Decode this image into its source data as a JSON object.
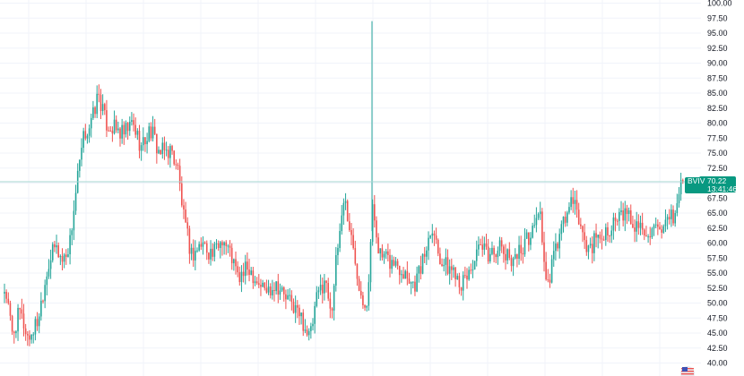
{
  "chart_data": {
    "type": "candlestick",
    "symbol": "BVIV",
    "last_price": "70.22",
    "countdown": "13:41:46",
    "ylim": [
      40,
      100
    ],
    "y_ticks": [
      "100.00",
      "97.50",
      "95.00",
      "92.50",
      "90.00",
      "87.50",
      "85.00",
      "82.50",
      "80.00",
      "77.50",
      "75.00",
      "72.50",
      "70.00",
      "67.50",
      "65.00",
      "62.50",
      "60.00",
      "57.50",
      "55.00",
      "52.50",
      "50.00",
      "47.50",
      "45.00",
      "42.50",
      "40.00"
    ],
    "grid": true,
    "colors": {
      "up": "#26a69a",
      "down": "#ef5350",
      "grid": "#f0f3fa",
      "price_line": "#a5d6d2",
      "badge": "#089981"
    },
    "anchors": [
      [
        0,
        50.0
      ],
      [
        8,
        52.5
      ],
      [
        16,
        44.5
      ],
      [
        24,
        48.5
      ],
      [
        34,
        44.0
      ],
      [
        44,
        47.0
      ],
      [
        56,
        56.5
      ],
      [
        64,
        59.5
      ],
      [
        72,
        57.0
      ],
      [
        80,
        60.0
      ],
      [
        88,
        70.0
      ],
      [
        96,
        78.0
      ],
      [
        104,
        80.0
      ],
      [
        112,
        85.0
      ],
      [
        120,
        80.0
      ],
      [
        130,
        79.0
      ],
      [
        140,
        78.0
      ],
      [
        150,
        80.0
      ],
      [
        160,
        76.0
      ],
      [
        170,
        79.0
      ],
      [
        180,
        75.0
      ],
      [
        192,
        75.5
      ],
      [
        200,
        73.0
      ],
      [
        208,
        63.0
      ],
      [
        216,
        58.0
      ],
      [
        228,
        60.0
      ],
      [
        240,
        58.0
      ],
      [
        250,
        61.0
      ],
      [
        260,
        58.0
      ],
      [
        268,
        54.0
      ],
      [
        280,
        56.0
      ],
      [
        290,
        53.5
      ],
      [
        300,
        52.0
      ],
      [
        310,
        53.5
      ],
      [
        320,
        51.0
      ],
      [
        330,
        49.5
      ],
      [
        340,
        47.0
      ],
      [
        348,
        44.0
      ],
      [
        356,
        51.0
      ],
      [
        364,
        54.0
      ],
      [
        372,
        49.0
      ],
      [
        378,
        58.0
      ],
      [
        386,
        68.0
      ],
      [
        396,
        59.0
      ],
      [
        406,
        51.0
      ],
      [
        412,
        50.5
      ],
      [
        418,
        66.0
      ],
      [
        426,
        58.0
      ],
      [
        434,
        57.0
      ],
      [
        444,
        56.5
      ],
      [
        456,
        55.0
      ],
      [
        464,
        53.0
      ],
      [
        474,
        57.0
      ],
      [
        484,
        63.5
      ],
      [
        492,
        58.0
      ],
      [
        500,
        56.0
      ],
      [
        510,
        55.5
      ],
      [
        518,
        53.0
      ],
      [
        528,
        56.0
      ],
      [
        538,
        59.0
      ],
      [
        548,
        58.0
      ],
      [
        558,
        59.5
      ],
      [
        568,
        57.5
      ],
      [
        578,
        58.0
      ],
      [
        588,
        60.0
      ],
      [
        598,
        62.5
      ],
      [
        604,
        66.5
      ],
      [
        612,
        51.5
      ],
      [
        620,
        58.0
      ],
      [
        630,
        63.0
      ],
      [
        640,
        67.0
      ],
      [
        648,
        64.0
      ],
      [
        656,
        59.0
      ],
      [
        664,
        60.0
      ],
      [
        672,
        61.0
      ],
      [
        680,
        62.5
      ],
      [
        690,
        63.5
      ],
      [
        700,
        65.0
      ],
      [
        710,
        63.0
      ],
      [
        720,
        62.5
      ],
      [
        730,
        62.0
      ],
      [
        740,
        61.0
      ],
      [
        748,
        63.5
      ],
      [
        756,
        65.0
      ],
      [
        762,
        70.22
      ]
    ]
  }
}
